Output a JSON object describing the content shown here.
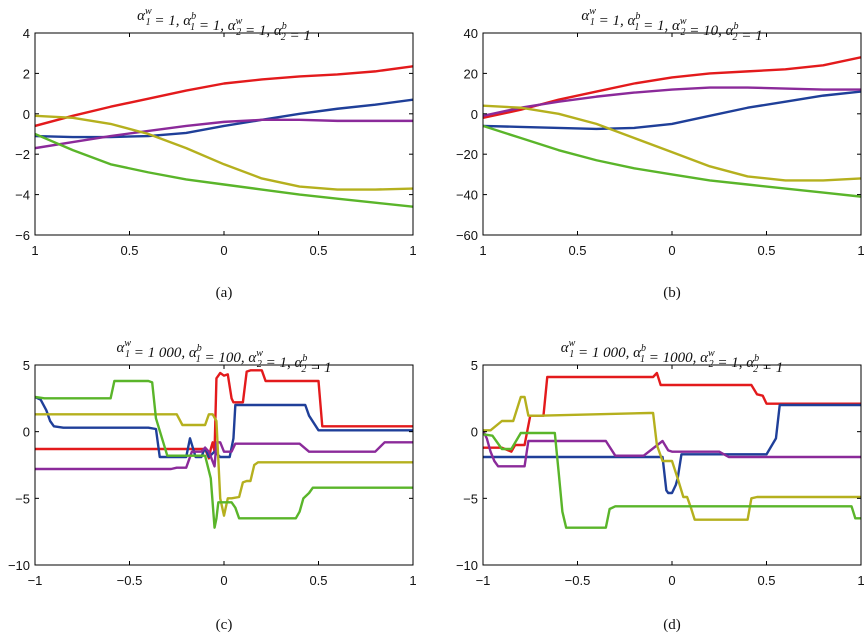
{
  "chart_data": [
    {
      "type": "line",
      "title": "α1w = 1,  α1b = 1,  α2w = 1,  α2b = 1",
      "title_parts": [
        {
          "s": "α"
        },
        {
          "sub": "1",
          "sup": "w"
        },
        {
          "s": " = 1,  α"
        },
        {
          "sub": "1",
          "sup": "b"
        },
        {
          "s": " = 1,  α"
        },
        {
          "sub": "2",
          "sup": "w"
        },
        {
          "s": " = 1,  α"
        },
        {
          "sub": "2",
          "sup": "b"
        },
        {
          "s": " = 1"
        }
      ],
      "caption": "(a)",
      "xlim": [
        -1,
        1
      ],
      "ylim": [
        -6,
        4
      ],
      "xticks": [
        -1,
        -0.5,
        0,
        0.5,
        1
      ],
      "xtick_labels": [
        "1",
        "0.5",
        "0",
        "0.5",
        "1"
      ],
      "yticks": [
        -6,
        -4,
        -2,
        0,
        2,
        4
      ],
      "ytick_labels": [
        "−6",
        "−4",
        "−2",
        "0",
        "2",
        "4"
      ],
      "grid": false,
      "series": [
        {
          "color": "#e31a1c",
          "x": [
            -1,
            -0.8,
            -0.6,
            -0.4,
            -0.2,
            0,
            0.2,
            0.4,
            0.6,
            0.8,
            1
          ],
          "y": [
            -0.6,
            -0.1,
            0.35,
            0.75,
            1.15,
            1.5,
            1.7,
            1.85,
            1.95,
            2.1,
            2.35
          ]
        },
        {
          "color": "#1f3f99",
          "x": [
            -1,
            -0.8,
            -0.6,
            -0.4,
            -0.2,
            0,
            0.2,
            0.4,
            0.6,
            0.8,
            1
          ],
          "y": [
            -1.1,
            -1.15,
            -1.15,
            -1.1,
            -0.95,
            -0.6,
            -0.3,
            0,
            0.25,
            0.45,
            0.7
          ]
        },
        {
          "color": "#8b2a9a",
          "x": [
            -1,
            -0.8,
            -0.6,
            -0.4,
            -0.2,
            0,
            0.2,
            0.4,
            0.6,
            0.8,
            1
          ],
          "y": [
            -1.7,
            -1.4,
            -1.1,
            -0.85,
            -0.6,
            -0.4,
            -0.3,
            -0.3,
            -0.35,
            -0.35,
            -0.35
          ]
        },
        {
          "color": "#b5b01e",
          "x": [
            -1,
            -0.8,
            -0.6,
            -0.4,
            -0.2,
            0,
            0.2,
            0.4,
            0.6,
            0.8,
            1
          ],
          "y": [
            -0.1,
            -0.2,
            -0.5,
            -1.0,
            -1.7,
            -2.5,
            -3.2,
            -3.6,
            -3.75,
            -3.75,
            -3.7
          ]
        },
        {
          "color": "#5ab52a",
          "x": [
            -1,
            -0.8,
            -0.6,
            -0.4,
            -0.2,
            0,
            0.2,
            0.4,
            0.6,
            0.8,
            1
          ],
          "y": [
            -1.0,
            -1.8,
            -2.5,
            -2.9,
            -3.25,
            -3.5,
            -3.75,
            -4.0,
            -4.2,
            -4.4,
            -4.6
          ]
        }
      ]
    },
    {
      "type": "line",
      "title": "α1w = 1,  α1b = 1,  α2w = 10,  α2b = 1",
      "title_parts": [
        {
          "s": "α"
        },
        {
          "sub": "1",
          "sup": "w"
        },
        {
          "s": " = 1,  α"
        },
        {
          "sub": "1",
          "sup": "b"
        },
        {
          "s": " = 1,  α"
        },
        {
          "sub": "2",
          "sup": "w"
        },
        {
          "s": " = 10,  α"
        },
        {
          "sub": "2",
          "sup": "b"
        },
        {
          "s": " = 1"
        }
      ],
      "caption": "(b)",
      "xlim": [
        -1,
        1
      ],
      "ylim": [
        -60,
        40
      ],
      "xticks": [
        -1,
        -0.5,
        0,
        0.5,
        1
      ],
      "xtick_labels": [
        "1",
        "0.5",
        "0",
        "0.5",
        "1"
      ],
      "yticks": [
        -60,
        -40,
        -20,
        0,
        20,
        40
      ],
      "ytick_labels": [
        "−60",
        "−40",
        "−20",
        "0",
        "20",
        "40"
      ],
      "grid": false,
      "series": [
        {
          "color": "#e31a1c",
          "x": [
            -1,
            -0.8,
            -0.6,
            -0.4,
            -0.2,
            0,
            0.2,
            0.4,
            0.6,
            0.8,
            1
          ],
          "y": [
            -2,
            2,
            7,
            11,
            15,
            18,
            20,
            21,
            22,
            24,
            28
          ]
        },
        {
          "color": "#1f3f99",
          "x": [
            -1,
            -0.8,
            -0.6,
            -0.4,
            -0.2,
            0,
            0.2,
            0.4,
            0.6,
            0.8,
            1
          ],
          "y": [
            -6,
            -6.5,
            -7,
            -7.5,
            -7,
            -5,
            -1,
            3,
            6,
            9,
            11
          ]
        },
        {
          "color": "#8b2a9a",
          "x": [
            -1,
            -0.8,
            -0.6,
            -0.4,
            -0.2,
            0,
            0.2,
            0.4,
            0.6,
            0.8,
            1
          ],
          "y": [
            -1,
            3,
            6,
            8.5,
            10.5,
            12,
            13,
            13,
            12.5,
            12,
            12
          ]
        },
        {
          "color": "#b5b01e",
          "x": [
            -1,
            -0.8,
            -0.6,
            -0.4,
            -0.2,
            0,
            0.2,
            0.4,
            0.6,
            0.8,
            1
          ],
          "y": [
            4,
            3,
            0,
            -5,
            -12,
            -19,
            -26,
            -31,
            -33,
            -33,
            -32
          ]
        },
        {
          "color": "#5ab52a",
          "x": [
            -1,
            -0.8,
            -0.6,
            -0.4,
            -0.2,
            0,
            0.2,
            0.4,
            0.6,
            0.8,
            1
          ],
          "y": [
            -6,
            -12,
            -18,
            -23,
            -27,
            -30,
            -33,
            -35,
            -37,
            -39,
            -41
          ]
        }
      ]
    },
    {
      "type": "line",
      "title": "α1w = 1 000, α1b = 100, α2w = 1,  α2b = 1",
      "title_parts": [
        {
          "s": "α"
        },
        {
          "sub": "1",
          "sup": "w"
        },
        {
          "s": " = 1 000, α"
        },
        {
          "sub": "1",
          "sup": "b"
        },
        {
          "s": " =  100, α"
        },
        {
          "sub": "2",
          "sup": "w"
        },
        {
          "s": " = 1,  α"
        },
        {
          "sub": "2",
          "sup": "b"
        },
        {
          "s": " = 1"
        }
      ],
      "caption": "(c)",
      "xlim": [
        -1,
        1
      ],
      "ylim": [
        -10,
        5
      ],
      "xticks": [
        -1,
        -0.5,
        0,
        0.5,
        1
      ],
      "xtick_labels": [
        "−1",
        "−0.5",
        "0",
        "0.5",
        "1"
      ],
      "yticks": [
        -10,
        -5,
        0,
        5
      ],
      "ytick_labels": [
        "−10",
        "−5",
        "0",
        "5"
      ],
      "grid": false,
      "series": [
        {
          "color": "#e31a1c",
          "x": [
            -1,
            -0.2,
            -0.1,
            -0.08,
            -0.07,
            -0.06,
            -0.05,
            -0.04,
            -0.03,
            -0.02,
            -0.01,
            0,
            0.02,
            0.04,
            0.05,
            0.06,
            0.1,
            0.12,
            0.14,
            0.16,
            0.2,
            0.22,
            0.25,
            0.3,
            0.5,
            0.52,
            1
          ],
          "y": [
            -1.3,
            -1.3,
            -1.3,
            -2.0,
            -1.3,
            -0.8,
            -1.5,
            4.0,
            4.2,
            4.4,
            4.3,
            4.2,
            4.3,
            2.5,
            2.2,
            2.2,
            2.2,
            4.5,
            4.6,
            4.6,
            4.6,
            3.8,
            3.8,
            3.8,
            3.8,
            0.4,
            0.4
          ]
        },
        {
          "color": "#1f3f99",
          "x": [
            -1,
            -0.97,
            -0.94,
            -0.92,
            -0.9,
            -0.85,
            -0.4,
            -0.36,
            -0.34,
            -0.25,
            -0.2,
            -0.18,
            -0.15,
            -0.12,
            -0.1,
            -0.08,
            -0.05,
            -0.02,
            0,
            0.03,
            0.05,
            0.06,
            0.08,
            0.4,
            0.43,
            0.45,
            0.5,
            1
          ],
          "y": [
            2.6,
            2.4,
            1.6,
            0.8,
            0.4,
            0.3,
            0.3,
            0.2,
            -1.9,
            -1.9,
            -1.9,
            -0.5,
            -1.9,
            -1.9,
            -1.2,
            -1.9,
            -1.5,
            -1.9,
            -1.9,
            -1.9,
            -0.5,
            2.0,
            2.0,
            2.0,
            2.0,
            1.2,
            0.1,
            0.1
          ]
        },
        {
          "color": "#8b2a9a",
          "x": [
            -1,
            -0.85,
            -0.3,
            -0.28,
            -0.25,
            -0.2,
            -0.17,
            -0.15,
            -0.12,
            -0.1,
            -0.08,
            -0.05,
            -0.04,
            -0.02,
            0,
            0.02,
            0.04,
            0.06,
            0.08,
            0.1,
            0.12,
            0.16,
            0.2,
            0.4,
            0.45,
            0.5,
            0.6,
            0.7,
            0.8,
            0.85,
            1
          ],
          "y": [
            -2.8,
            -2.8,
            -2.8,
            -2.8,
            -2.7,
            -2.7,
            -1.5,
            -1.5,
            -1.5,
            -1.2,
            -1.5,
            -2.6,
            -0.8,
            -0.8,
            -1.5,
            -1.5,
            -1.5,
            -0.9,
            -0.9,
            -0.9,
            -0.9,
            -0.9,
            -0.9,
            -0.9,
            -1.5,
            -1.5,
            -1.5,
            -1.5,
            -1.5,
            -0.8,
            -0.8
          ]
        },
        {
          "color": "#b5b01e",
          "x": [
            -1,
            -0.35,
            -0.3,
            -0.25,
            -0.22,
            -0.2,
            -0.18,
            -0.15,
            -0.1,
            -0.08,
            -0.06,
            -0.04,
            -0.02,
            0,
            0.02,
            0.04,
            0.08,
            0.1,
            0.12,
            0.14,
            0.16,
            0.18,
            0.2,
            1
          ],
          "y": [
            1.3,
            1.3,
            1.3,
            1.3,
            0.5,
            0.5,
            0.5,
            0.5,
            0.5,
            1.3,
            1.3,
            0.8,
            -5.0,
            -6.3,
            -5.0,
            -5.0,
            -4.9,
            -3.8,
            -3.7,
            -3.7,
            -2.5,
            -2.3,
            -2.3,
            -2.3
          ]
        },
        {
          "color": "#5ab52a",
          "x": [
            -1,
            -0.95,
            -0.9,
            -0.6,
            -0.58,
            -0.4,
            -0.38,
            -0.36,
            -0.3,
            -0.25,
            -0.2,
            -0.15,
            -0.1,
            -0.07,
            -0.05,
            -0.04,
            -0.03,
            0,
            0.02,
            0.04,
            0.06,
            0.08,
            0.1,
            0.35,
            0.38,
            0.4,
            0.42,
            0.45,
            0.47,
            0.5,
            1
          ],
          "y": [
            2.6,
            2.5,
            2.5,
            2.5,
            3.8,
            3.8,
            3.7,
            1.0,
            -1.8,
            -1.8,
            -1.8,
            -1.8,
            -1.8,
            -3.5,
            -7.2,
            -6.5,
            -5.3,
            -5.3,
            -5.3,
            -5.3,
            -5.7,
            -6.5,
            -6.5,
            -6.5,
            -6.5,
            -6.0,
            -5.0,
            -4.6,
            -4.2,
            -4.2,
            -4.2
          ]
        }
      ]
    },
    {
      "type": "line",
      "title": "α1w = 1 000, α1b = 1000, α2w = 1,  α2b = 1",
      "title_parts": [
        {
          "s": "α"
        },
        {
          "sub": "1",
          "sup": "w"
        },
        {
          "s": " = 1 000, α"
        },
        {
          "sub": "1",
          "sup": "b"
        },
        {
          "s": " =  1000, α"
        },
        {
          "sub": "2",
          "sup": "w"
        },
        {
          "s": " = 1,  α"
        },
        {
          "sub": "2",
          "sup": "b"
        },
        {
          "s": " = 1"
        }
      ],
      "caption": "(d)",
      "xlim": [
        -1,
        1
      ],
      "ylim": [
        -10,
        5
      ],
      "xticks": [
        -1,
        -0.5,
        0,
        0.5,
        1
      ],
      "xtick_labels": [
        "−1",
        "−0.5",
        "0",
        "0.5",
        "1"
      ],
      "yticks": [
        -10,
        -5,
        0,
        5
      ],
      "ytick_labels": [
        "−10",
        "−5",
        "0",
        "5"
      ],
      "grid": false,
      "series": [
        {
          "color": "#e31a1c",
          "x": [
            -1,
            -0.9,
            -0.85,
            -0.83,
            -0.8,
            -0.78,
            -0.75,
            -0.72,
            -0.7,
            -0.68,
            -0.66,
            -0.1,
            -0.08,
            -0.06,
            0.42,
            0.45,
            0.48,
            0.5,
            0.52,
            1
          ],
          "y": [
            -1.2,
            -1.2,
            -1.5,
            -1.0,
            -1.0,
            -1.0,
            1.2,
            1.2,
            1.2,
            1.2,
            4.1,
            4.1,
            4.4,
            3.5,
            3.5,
            2.8,
            2.7,
            2.1,
            2.1,
            2.1
          ]
        },
        {
          "color": "#1f3f99",
          "x": [
            -1,
            -0.05,
            -0.03,
            -0.02,
            0,
            0.02,
            0.03,
            0.05,
            0.5,
            0.55,
            0.57,
            1
          ],
          "y": [
            -1.9,
            -1.9,
            -4.4,
            -4.6,
            -4.6,
            -4.0,
            -3.5,
            -1.7,
            -1.7,
            -0.5,
            2.0,
            2.0
          ]
        },
        {
          "color": "#8b2a9a",
          "x": [
            -1,
            -0.98,
            -0.96,
            -0.94,
            -0.92,
            -0.9,
            -0.8,
            -0.78,
            -0.76,
            -0.6,
            -0.55,
            -0.35,
            -0.3,
            -0.2,
            -0.15,
            -0.05,
            -0.02,
            0,
            0.03,
            0.05,
            0.25,
            0.3,
            1
          ],
          "y": [
            0.1,
            -0.5,
            -1.5,
            -2.2,
            -2.6,
            -2.6,
            -2.6,
            -2.6,
            -0.7,
            -0.7,
            -0.7,
            -0.7,
            -1.8,
            -1.8,
            -1.8,
            -0.7,
            -1.4,
            -1.5,
            -1.5,
            -1.5,
            -1.5,
            -1.9,
            -1.9
          ]
        },
        {
          "color": "#b5b01e",
          "x": [
            -1,
            -0.96,
            -0.9,
            -0.88,
            -0.84,
            -0.8,
            -0.78,
            -0.76,
            -0.74,
            -0.72,
            -0.7,
            -0.12,
            -0.1,
            -0.08,
            -0.05,
            0,
            0.03,
            0.06,
            0.08,
            0.1,
            0.12,
            0.14,
            0.4,
            0.42,
            0.45,
            0.5,
            1
          ],
          "y": [
            0.1,
            0.1,
            0.8,
            0.8,
            0.8,
            2.6,
            2.6,
            1.2,
            1.2,
            1.2,
            1.2,
            1.4,
            1.4,
            -1.0,
            -2.2,
            -2.2,
            -3.5,
            -4.9,
            -4.9,
            -5.7,
            -6.6,
            -6.6,
            -6.6,
            -5.0,
            -4.9,
            -4.9,
            -4.9
          ]
        },
        {
          "color": "#5ab52a",
          "x": [
            -1,
            -0.95,
            -0.9,
            -0.85,
            -0.8,
            -0.62,
            -0.6,
            -0.58,
            -0.56,
            -0.55,
            -0.35,
            -0.33,
            -0.3,
            0.95,
            0.97,
            1
          ],
          "y": [
            -0.2,
            -0.3,
            -1.3,
            -1.3,
            -0.1,
            -0.1,
            -3.0,
            -6.0,
            -7.2,
            -7.2,
            -7.2,
            -5.8,
            -5.6,
            -5.6,
            -6.5,
            -6.5
          ]
        }
      ]
    }
  ]
}
